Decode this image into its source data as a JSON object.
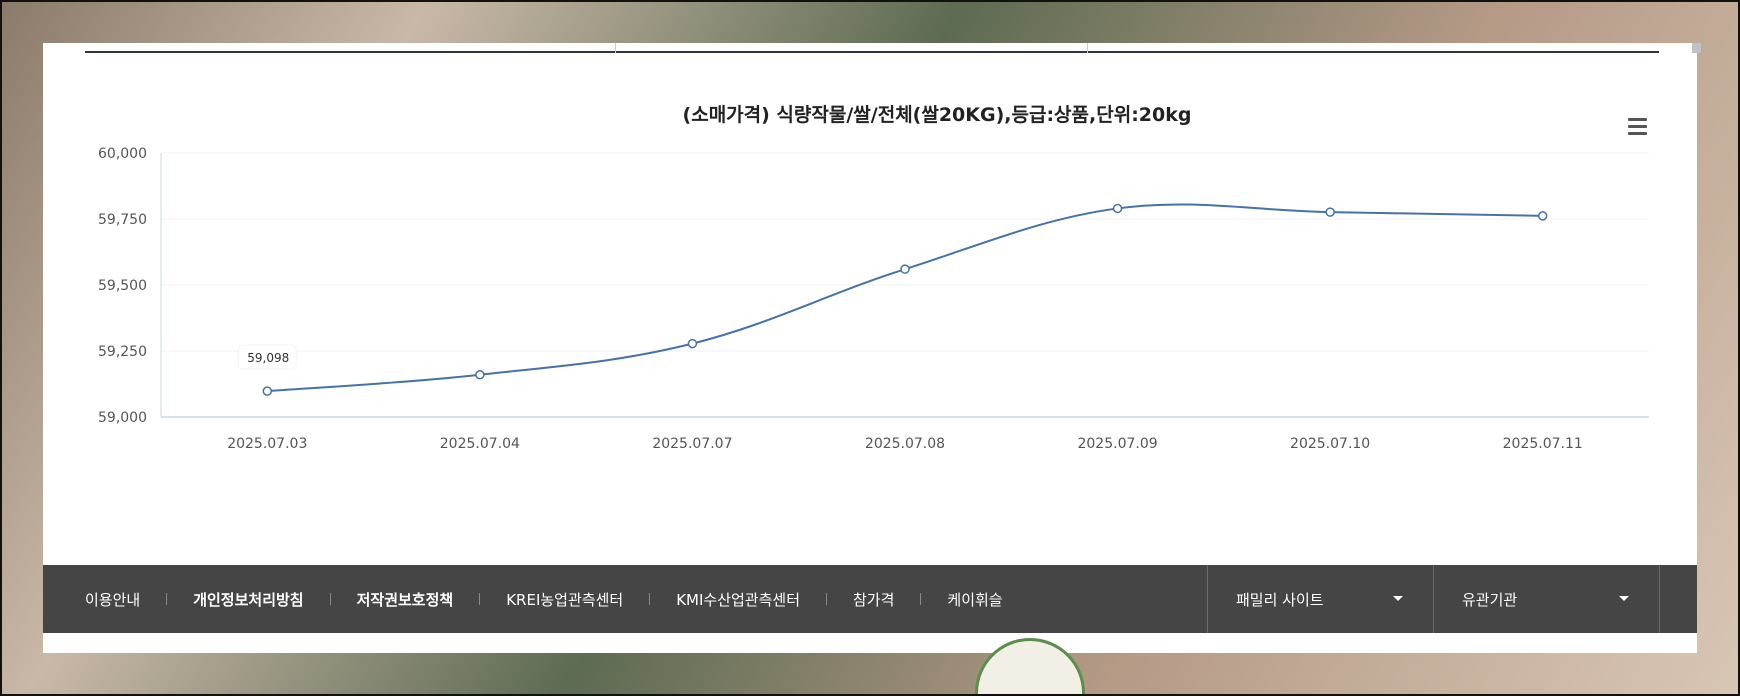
{
  "chart_data": {
    "type": "line",
    "title": "(소매가격) 식량작물/쌀/전체(쌀20KG),등급:상품,단위:20kg",
    "categories": [
      "2025.07.03",
      "2025.07.04",
      "2025.07.07",
      "2025.07.08",
      "2025.07.09",
      "2025.07.10",
      "2025.07.11"
    ],
    "series": [
      {
        "values": [
          59098,
          59160,
          59278,
          59560,
          59790,
          59776,
          59762
        ]
      }
    ],
    "ylim": [
      59000,
      60000
    ],
    "yticks": [
      59000,
      59250,
      59500,
      59750,
      60000
    ],
    "ytick_labels": [
      "59,000",
      "59,250",
      "59,500",
      "59,750",
      "60,000"
    ],
    "tooltip": {
      "point_index": 0,
      "label": "59,098"
    },
    "color": "#4572a7",
    "grid": true,
    "legend": "none"
  },
  "footer": {
    "links": [
      {
        "label": "이용안내",
        "bold": false
      },
      {
        "label": "개인정보처리방침",
        "bold": true
      },
      {
        "label": "저작권보호정책",
        "bold": true
      },
      {
        "label": "KREI농업관측센터",
        "bold": false
      },
      {
        "label": "KMI수산업관측센터",
        "bold": false
      },
      {
        "label": "참가격",
        "bold": false
      },
      {
        "label": "케이휘슬",
        "bold": false
      }
    ],
    "family_site": "패밀리 사이트",
    "related_orgs": "유관기관"
  },
  "icons": {
    "menu": "hamburger-menu-icon",
    "dropdown": "caret-down-icon"
  }
}
